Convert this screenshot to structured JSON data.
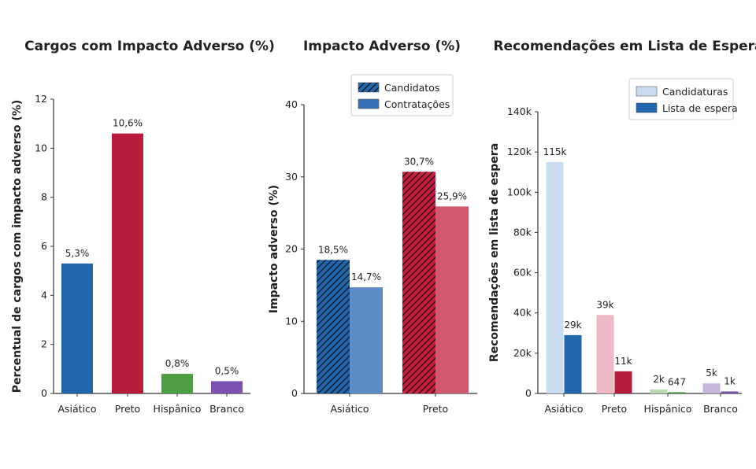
{
  "chart_data": [
    {
      "type": "bar",
      "title": "Cargos com Impacto Adverso (%)",
      "ylabel": "Percentual de cargos com impacto adverso (%)",
      "xlabel": "",
      "categories": [
        "Asiático",
        "Preto",
        "Hispânico",
        "Branco"
      ],
      "values": [
        5.3,
        10.6,
        0.8,
        0.5
      ],
      "data_labels": [
        "5,3%",
        "10,6%",
        "0,8%",
        "0,5%"
      ],
      "colors": [
        "#2066ad",
        "#b81b3b",
        "#4e9e43",
        "#7b52ad"
      ],
      "ylim": [
        0,
        12
      ],
      "yticks": [
        0,
        2,
        4,
        6,
        8,
        10,
        12
      ],
      "ytick_labels": [
        "0",
        "2",
        "4",
        "6",
        "8",
        "10",
        "12"
      ],
      "grid": false,
      "legend": "none"
    },
    {
      "type": "bar",
      "title": "Impacto Adverso (%)",
      "ylabel": "Impacto adverso (%)",
      "xlabel": "",
      "categories": [
        "Asiático",
        "Preto"
      ],
      "series": [
        {
          "name": "Candidatos",
          "values": [
            18.5,
            30.7
          ],
          "data_labels": [
            "18,5%",
            "30,7%"
          ],
          "colors": [
            "#2066ad",
            "#c81e40"
          ],
          "hatch": true
        },
        {
          "name": "Contratações",
          "values": [
            14.7,
            25.9
          ],
          "data_labels": [
            "14,7%",
            "25,9%"
          ],
          "colors": [
            "#5c8dc5",
            "#d05a70"
          ],
          "hatch": false
        }
      ],
      "legend_swatch_colors": [
        "#2066ad",
        "#3471b6"
      ],
      "ylim": [
        0,
        40
      ],
      "yticks": [
        0,
        10,
        20,
        30,
        40
      ],
      "ytick_labels": [
        "0",
        "10",
        "20",
        "30",
        "40"
      ],
      "grid": false,
      "legend": "top-center"
    },
    {
      "type": "bar",
      "title": "Recomendações em Lista de Espera",
      "ylabel": "Recomendações em lista de espera",
      "xlabel": "",
      "categories": [
        "Asiático",
        "Preto",
        "Hispânico",
        "Branco"
      ],
      "series": [
        {
          "name": "Candidaturas",
          "values": [
            115000,
            39000,
            2000,
            5000
          ],
          "data_labels": [
            "115k",
            "39k",
            "2k",
            "5k"
          ],
          "colors": [
            "#c9dcf0",
            "#ecb8c3",
            "#b9dbb2",
            "#c7b6dc"
          ]
        },
        {
          "name": "Lista de espera",
          "values": [
            29000,
            11000,
            647,
            1000
          ],
          "data_labels": [
            "29k",
            "11k",
            "647",
            "1k"
          ],
          "colors": [
            "#2066ad",
            "#b81b3b",
            "#4e9e43",
            "#7b52ad"
          ]
        }
      ],
      "legend_swatch_colors": [
        "#c9dcf0",
        "#2066ad"
      ],
      "ylim": [
        0,
        140000
      ],
      "yticks": [
        0,
        20000,
        40000,
        60000,
        80000,
        100000,
        120000,
        140000
      ],
      "ytick_labels": [
        "0",
        "20k",
        "40k",
        "60k",
        "80k",
        "100k",
        "120k",
        "140k"
      ],
      "grid": false,
      "legend": "top-right"
    }
  ]
}
